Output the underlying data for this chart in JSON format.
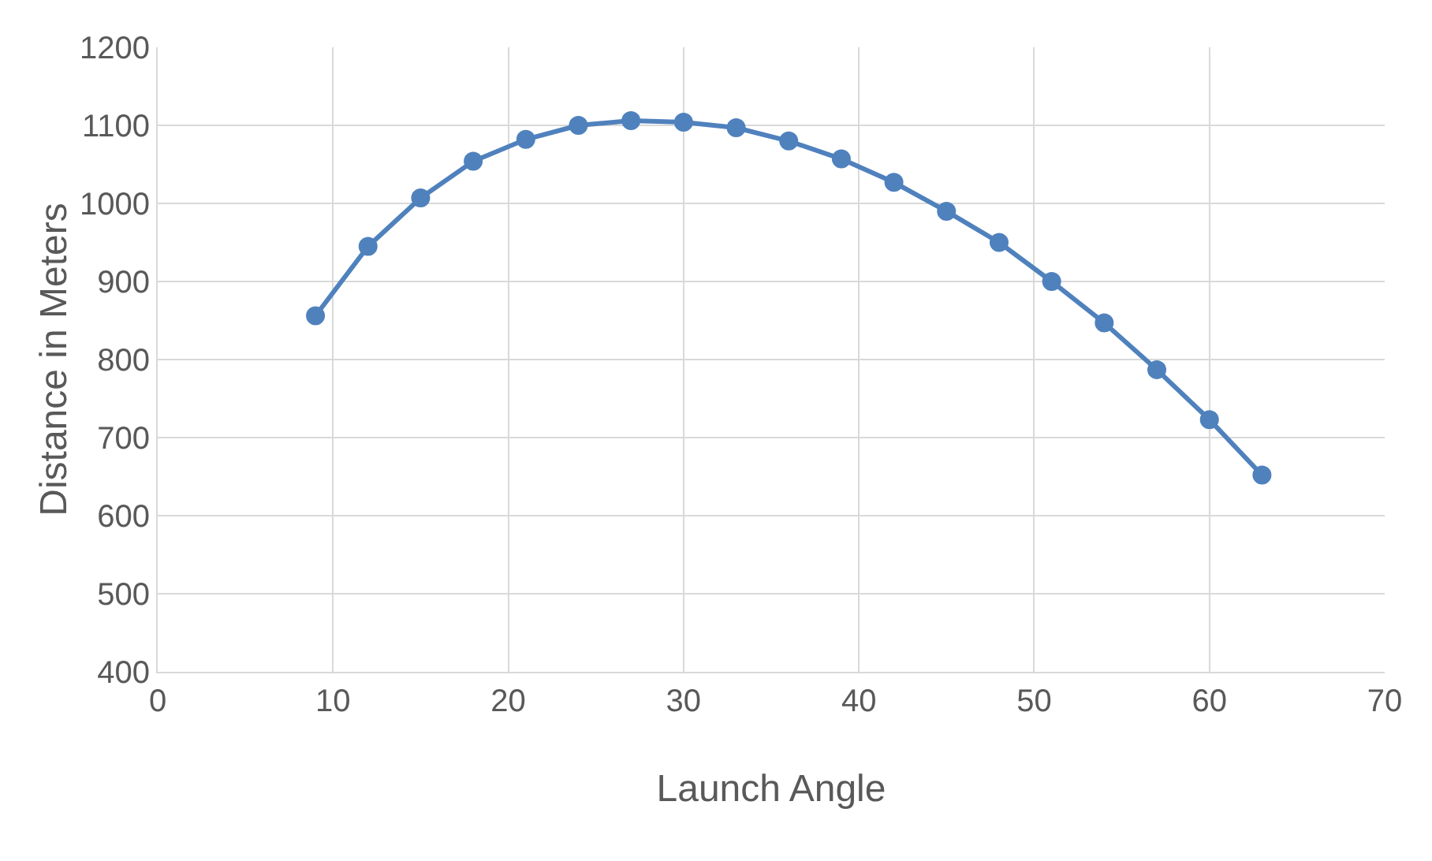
{
  "chart_data": {
    "type": "line",
    "xlabel": "Launch Angle",
    "ylabel": "Distance in Meters",
    "x": [
      9,
      12,
      15,
      18,
      21,
      24,
      27,
      30,
      33,
      36,
      39,
      42,
      45,
      48,
      51,
      54,
      57,
      60,
      63
    ],
    "series": [
      {
        "color": "#4f81bd",
        "values": [
          856,
          945,
          1007,
          1054,
          1082,
          1100,
          1106,
          1104,
          1097,
          1080,
          1057,
          1027,
          990,
          950,
          900,
          847,
          787,
          723,
          652
        ]
      }
    ],
    "xlim": [
      0,
      70
    ],
    "xticks": [
      0,
      10,
      20,
      30,
      40,
      50,
      60,
      70
    ],
    "ylim": [
      400,
      1200
    ],
    "yticks": [
      400,
      500,
      600,
      700,
      800,
      900,
      1000,
      1100,
      1200
    ],
    "grid": true,
    "marker": "circle",
    "line_style": "solid"
  }
}
